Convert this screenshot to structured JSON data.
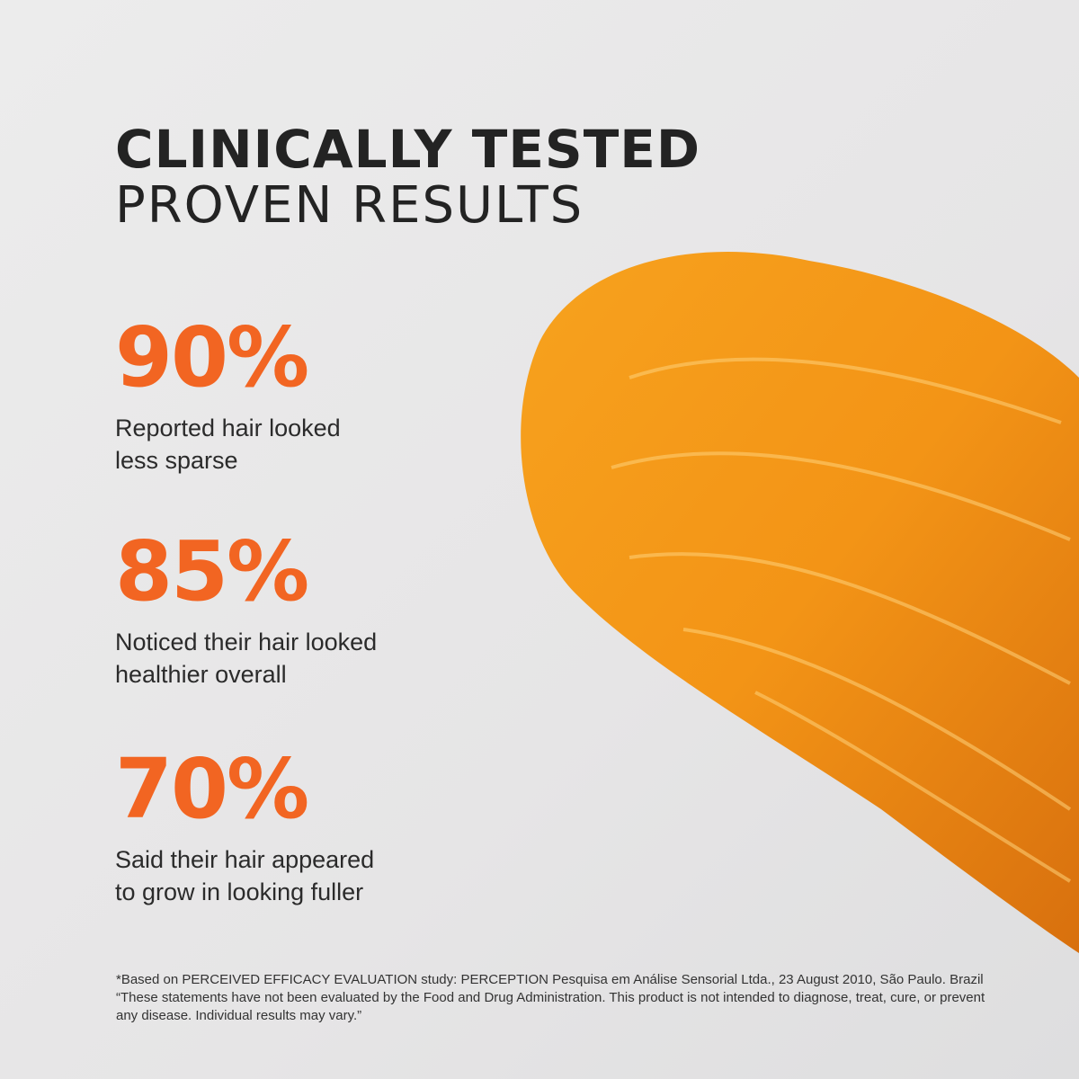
{
  "heading": {
    "line1": "CLINICALLY TESTED",
    "line2": "PROVEN RESULTS"
  },
  "stats": [
    {
      "value": "90%",
      "line1": "Reported hair looked",
      "line2": "less sparse"
    },
    {
      "value": "85%",
      "line1": "Noticed their hair looked",
      "line2": "healthier overall"
    },
    {
      "value": "70%",
      "line1": "Said their hair appeared",
      "line2": "to grow in looking fuller"
    }
  ],
  "footnote": {
    "line1": "*Based on PERCEIVED EFFICACY EVALUATION study: PERCEPTION Pesquisa em Análise Sensorial Ltda., 23 August 2010, São Paulo. Brazil",
    "line2": "“These statements have not been evaluated by the Food and Drug Administration. This product is not intended to diagnose, treat, cure, or prevent any disease. Individual results may vary.”"
  },
  "colors": {
    "accent": "#f26522",
    "text": "#232323",
    "background": "#e6e5e6",
    "gel": "#f39a1c"
  }
}
